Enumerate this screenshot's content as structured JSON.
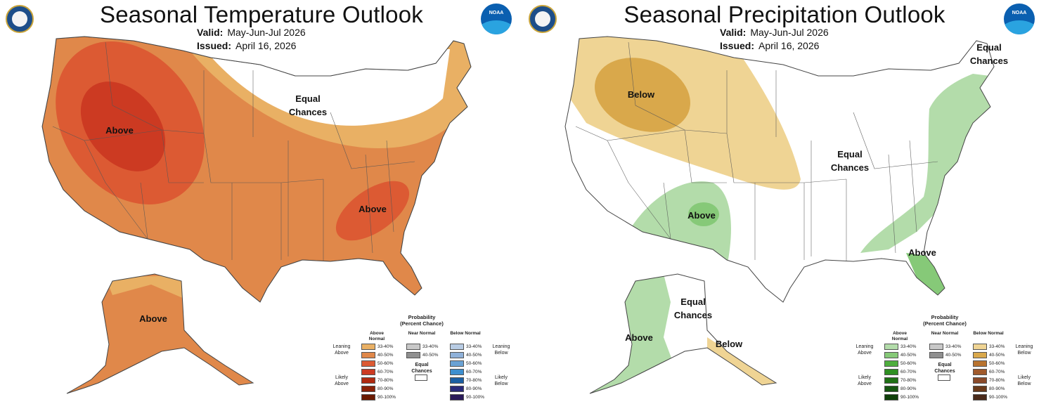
{
  "temperature": {
    "title": "Seasonal Temperature Outlook",
    "valid_label": "Valid:",
    "valid_value": "May-Jun-Jul 2026",
    "issued_label": "Issued:",
    "issued_value": "April 16, 2026",
    "labels": {
      "equal_line1": "Equal",
      "equal_line2": "Chances",
      "above_west": "Above",
      "above_se": "Above",
      "above_alaska": "Above"
    },
    "colors": {
      "c3340": "#e9b064",
      "c4050": "#e0884a",
      "c5060": "#dc5a33",
      "c6070": "#cc3a22"
    }
  },
  "precipitation": {
    "title": "Seasonal Precipitation Outlook",
    "valid_label": "Valid:",
    "valid_value": "May-Jun-Jul 2026",
    "issued_label": "Issued:",
    "issued_value": "April 16, 2026",
    "labels": {
      "below_nw": "Below",
      "equal_ne_line1": "Equal",
      "equal_ne_line2": "Chances",
      "equal_center_line1": "Equal",
      "equal_center_line2": "Chances",
      "above_sw": "Above",
      "above_se": "Above",
      "equal_ak_line1": "Equal",
      "equal_ak_line2": "Chances",
      "above_ak": "Above",
      "below_ak": "Below"
    },
    "colors": {
      "green3340": "#b3dcaa",
      "green4050": "#86c978",
      "tan3340": "#efd494",
      "tan4050": "#d9a84b"
    }
  },
  "legend_temp": {
    "title_line1": "Probability",
    "title_line2": "(Percent Chance)",
    "above_head": "Above Normal",
    "near_head": "Near Normal",
    "below_head": "Below Normal",
    "rows": [
      "33-40%",
      "40-50%",
      "50-60%",
      "60-70%",
      "70-80%",
      "80-90%",
      "90-100%"
    ],
    "near_rows": [
      "33-40%",
      "40-50%"
    ],
    "equal_label": "Equal Chances",
    "leaning_above": "Leaning Above",
    "likely_above": "Likely Above",
    "leaning_below": "Leaning Below",
    "likely_below": "Likely Below",
    "above_colors": [
      "#e9b064",
      "#e0884a",
      "#dc5a33",
      "#cc3a22",
      "#b02a10",
      "#8a2208",
      "#6a1a00"
    ],
    "near_colors": [
      "#c8c8c8",
      "#8f8f8f"
    ],
    "below_colors": [
      "#b8cce4",
      "#8fb1d9",
      "#6aa2d4",
      "#3d8fcf",
      "#1b5fa3",
      "#2a2a7a",
      "#2a1a5a"
    ]
  },
  "legend_precip": {
    "title_line1": "Probability",
    "title_line2": "(Percent Chance)",
    "above_head": "Above Normal",
    "near_head": "Near Normal",
    "below_head": "Below Normal",
    "rows": [
      "33-40%",
      "40-50%",
      "50-60%",
      "60-70%",
      "70-80%",
      "80-90%",
      "90-100%"
    ],
    "near_rows": [
      "33-40%",
      "40-50%"
    ],
    "equal_label": "Equal Chances",
    "leaning_above": "Leaning Above",
    "likely_above": "Likely Above",
    "leaning_below": "Leaning Below",
    "likely_below": "Likely Below",
    "above_colors": [
      "#b3dcaa",
      "#86c978",
      "#4fae3e",
      "#2f8f22",
      "#1f7015",
      "#155510",
      "#0f400a"
    ],
    "near_colors": [
      "#c8c8c8",
      "#8f8f8f"
    ],
    "below_colors": [
      "#efd494",
      "#d9a84b",
      "#b8732f",
      "#a05a2c",
      "#8a4a2a",
      "#6a3a1a",
      "#4a2a1a"
    ]
  }
}
